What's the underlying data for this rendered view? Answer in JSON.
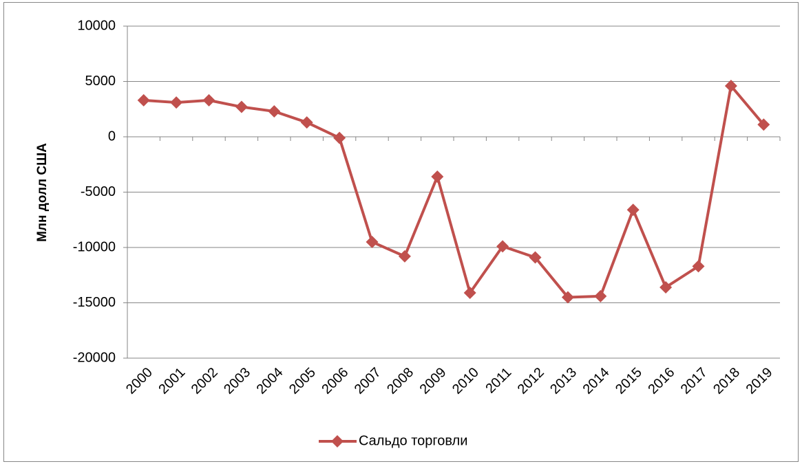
{
  "chart_data": {
    "type": "line",
    "y_label": "Млн долл США",
    "categories": [
      "2000",
      "2001",
      "2002",
      "2003",
      "2004",
      "2005",
      "2006",
      "2007",
      "2008",
      "2009",
      "2010",
      "2011",
      "2012",
      "2013",
      "2014",
      "2015",
      "2016",
      "2017",
      "2018",
      "2019"
    ],
    "series": [
      {
        "name": "Сальдо торговли",
        "color": "#c0504d",
        "values": [
          3300,
          3100,
          3300,
          2700,
          2300,
          1300,
          -100,
          -9500,
          -10800,
          -3600,
          -14100,
          -9900,
          -10900,
          -14500,
          -14400,
          -6600,
          -13600,
          -11700,
          4600,
          1100
        ]
      }
    ],
    "ylim": [
      -20000,
      10000
    ],
    "yticks": [
      -20000,
      -15000,
      -10000,
      -5000,
      0,
      5000,
      10000
    ],
    "grid": true,
    "legend": "bottom"
  }
}
